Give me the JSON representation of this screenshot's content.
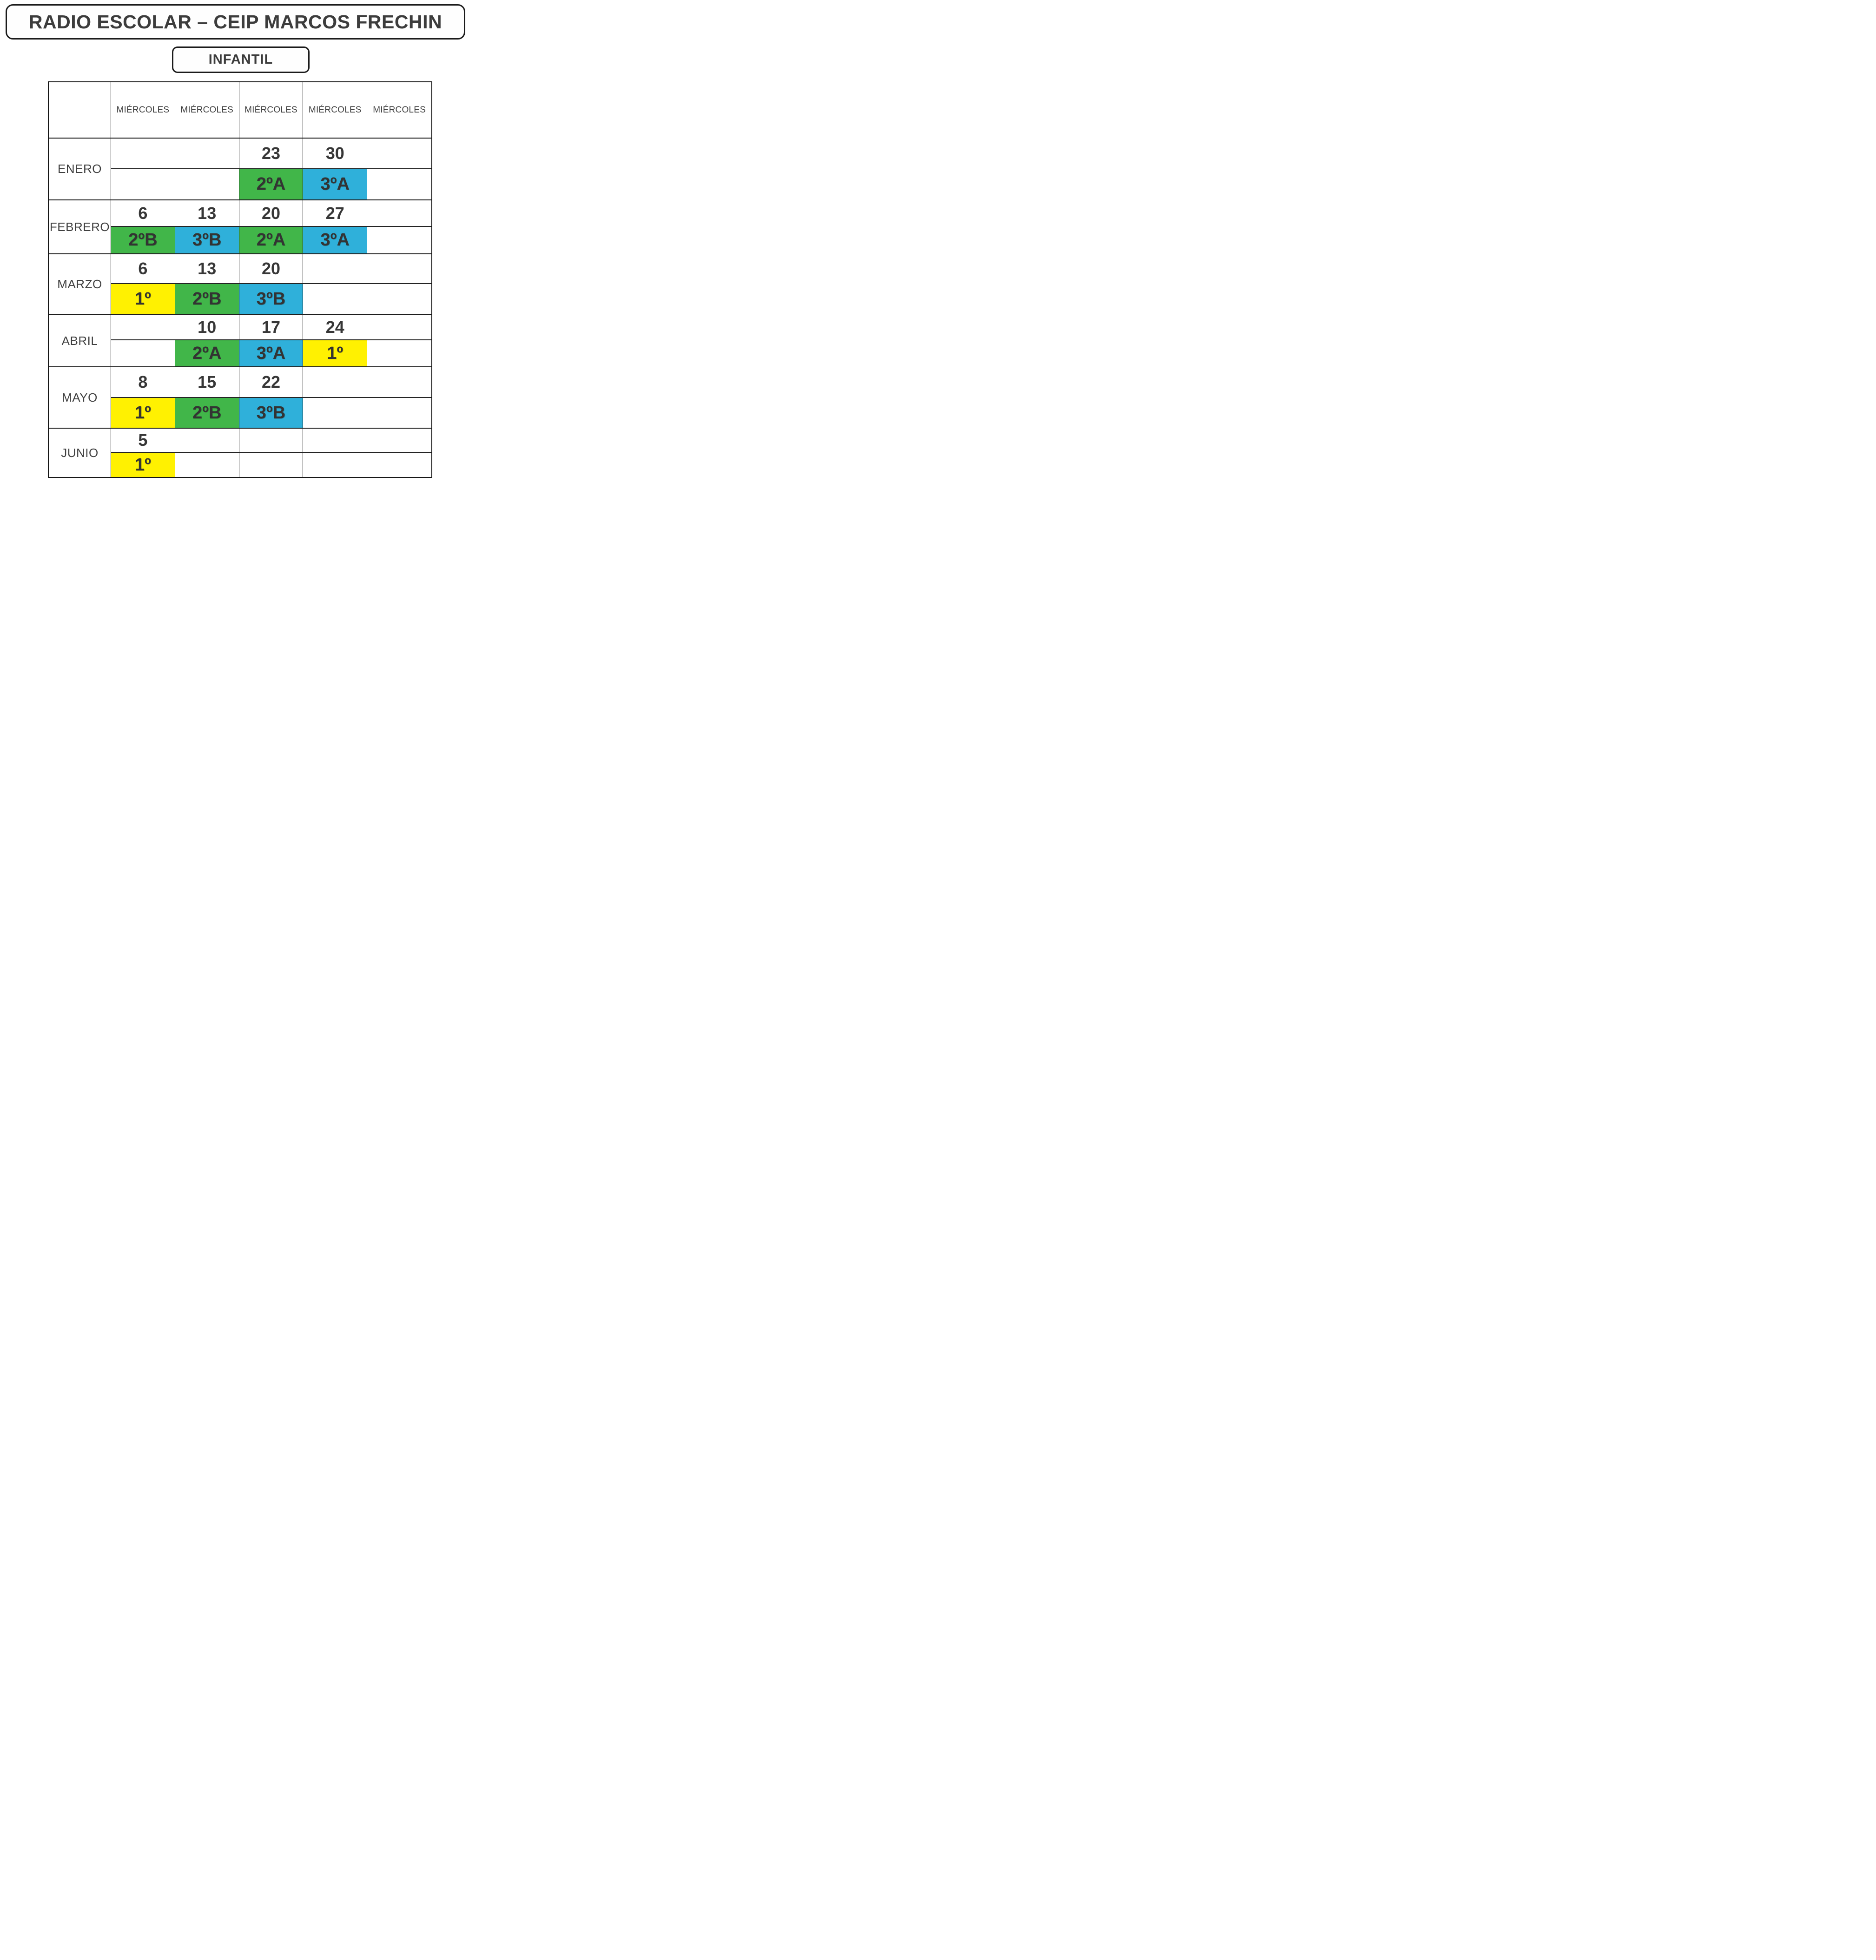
{
  "page": {
    "title": "RADIO ESCOLAR – CEIP MARCOS FRECHIN",
    "subtitle": "INFANTIL"
  },
  "palette": {
    "green": "#41b649",
    "blue": "#2fb0da",
    "yellow": "#fff101"
  },
  "table": {
    "columns": [
      "MIÉRCOLES",
      "MIÉRCOLES",
      "MIÉRCOLES",
      "MIÉRCOLES",
      "MIÉRCOLES"
    ],
    "months": [
      {
        "name": "ENERO",
        "dates": [
          "",
          "",
          "23",
          "30",
          ""
        ],
        "groups": [
          {
            "label": "",
            "color": ""
          },
          {
            "label": "",
            "color": ""
          },
          {
            "label": "2ºA",
            "color": "green"
          },
          {
            "label": "3ºA",
            "color": "blue"
          },
          {
            "label": "",
            "color": ""
          }
        ]
      },
      {
        "name": "FEBRERO",
        "dates": [
          "6",
          "13",
          "20",
          "27",
          ""
        ],
        "groups": [
          {
            "label": "2ºB",
            "color": "green"
          },
          {
            "label": "3ºB",
            "color": "blue"
          },
          {
            "label": "2ºA",
            "color": "green"
          },
          {
            "label": "3ºA",
            "color": "blue"
          },
          {
            "label": "",
            "color": ""
          }
        ]
      },
      {
        "name": "MARZO",
        "dates": [
          "6",
          "13",
          "20",
          "",
          ""
        ],
        "groups": [
          {
            "label": "1º",
            "color": "yellow"
          },
          {
            "label": "2ºB",
            "color": "green"
          },
          {
            "label": "3ºB",
            "color": "blue"
          },
          {
            "label": "",
            "color": ""
          },
          {
            "label": "",
            "color": ""
          }
        ]
      },
      {
        "name": "ABRIL",
        "dates": [
          "",
          "10",
          "17",
          "24",
          ""
        ],
        "groups": [
          {
            "label": "",
            "color": ""
          },
          {
            "label": "2ºA",
            "color": "green"
          },
          {
            "label": "3ºA",
            "color": "blue"
          },
          {
            "label": "1º",
            "color": "yellow"
          },
          {
            "label": "",
            "color": ""
          }
        ]
      },
      {
        "name": "MAYO",
        "dates": [
          "8",
          "15",
          "22",
          "",
          ""
        ],
        "groups": [
          {
            "label": "1º",
            "color": "yellow"
          },
          {
            "label": "2ºB",
            "color": "green"
          },
          {
            "label": "3ºB",
            "color": "blue"
          },
          {
            "label": "",
            "color": ""
          },
          {
            "label": "",
            "color": ""
          }
        ]
      },
      {
        "name": "JUNIO",
        "dates": [
          "5",
          "",
          "",
          "",
          ""
        ],
        "groups": [
          {
            "label": "1º",
            "color": "yellow"
          },
          {
            "label": "",
            "color": ""
          },
          {
            "label": "",
            "color": ""
          },
          {
            "label": "",
            "color": ""
          },
          {
            "label": "",
            "color": ""
          }
        ]
      }
    ]
  }
}
